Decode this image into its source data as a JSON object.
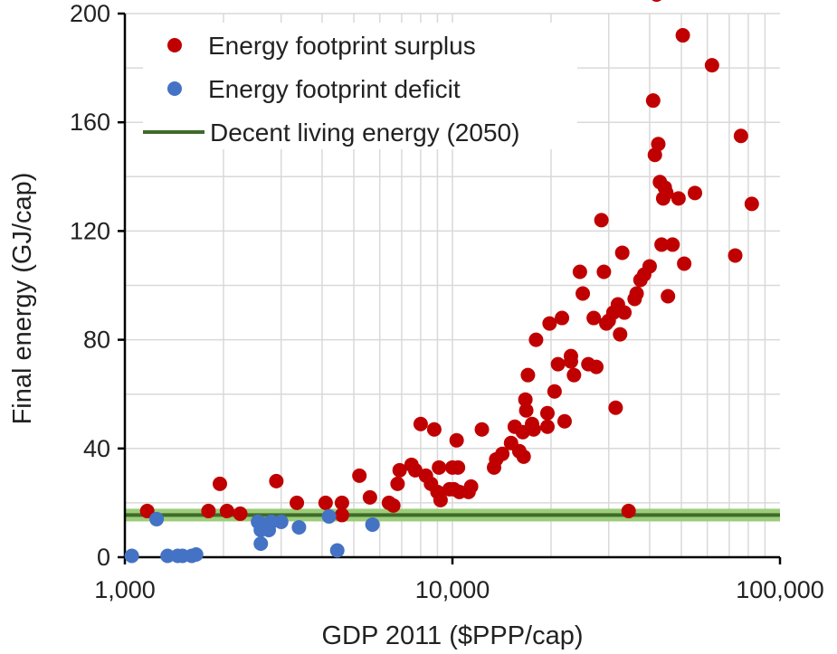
{
  "chart_data": {
    "type": "scatter",
    "title": "",
    "xlabel": "GDP 2011 ($PPP/cap)",
    "ylabel": "Final energy (GJ/cap)",
    "x_scale": "log",
    "xlim": [
      1000,
      100000
    ],
    "ylim": [
      0,
      200
    ],
    "x_ticks": [
      1000,
      10000,
      100000
    ],
    "x_tick_labels": [
      "1,000",
      "10,000",
      "100,000"
    ],
    "y_ticks": [
      0,
      40,
      80,
      120,
      160,
      200
    ],
    "y_tick_labels": [
      "0",
      "40",
      "80",
      "120",
      "160",
      "200"
    ],
    "grid": true,
    "legend_position": "top-left",
    "reference_line": {
      "name": "Decent living energy (2050)",
      "y": 15.5,
      "color": "#3f6b2a",
      "band_color": "#9bcd7a"
    },
    "series": [
      {
        "name": "Energy footprint surplus",
        "color": "#c00000",
        "points": [
          [
            1170,
            17
          ],
          [
            1800,
            17
          ],
          [
            1950,
            27
          ],
          [
            2050,
            17
          ],
          [
            2250,
            16
          ],
          [
            2900,
            28
          ],
          [
            3350,
            20
          ],
          [
            4100,
            20
          ],
          [
            4600,
            20
          ],
          [
            4600,
            15.5
          ],
          [
            5200,
            30
          ],
          [
            5600,
            22
          ],
          [
            6400,
            20
          ],
          [
            6600,
            19
          ],
          [
            6800,
            27
          ],
          [
            6900,
            32
          ],
          [
            7500,
            34
          ],
          [
            7700,
            32
          ],
          [
            8000,
            49
          ],
          [
            8300,
            30
          ],
          [
            8600,
            27
          ],
          [
            8800,
            47
          ],
          [
            9000,
            24
          ],
          [
            9100,
            33
          ],
          [
            9200,
            21
          ],
          [
            9800,
            25
          ],
          [
            10000,
            33
          ],
          [
            10100,
            25
          ],
          [
            10300,
            43
          ],
          [
            10400,
            33
          ],
          [
            10500,
            24
          ],
          [
            11200,
            24
          ],
          [
            11400,
            26
          ],
          [
            12300,
            47
          ],
          [
            13400,
            33
          ],
          [
            13600,
            36
          ],
          [
            14200,
            38
          ],
          [
            15100,
            42
          ],
          [
            15500,
            48
          ],
          [
            16000,
            39
          ],
          [
            16400,
            46
          ],
          [
            16500,
            37
          ],
          [
            16700,
            58
          ],
          [
            16800,
            54
          ],
          [
            17000,
            67
          ],
          [
            17500,
            49
          ],
          [
            17700,
            47
          ],
          [
            18000,
            80
          ],
          [
            19500,
            48
          ],
          [
            19500,
            53
          ],
          [
            19800,
            86
          ],
          [
            20500,
            61
          ],
          [
            21000,
            71
          ],
          [
            21600,
            88
          ],
          [
            22000,
            50
          ],
          [
            23000,
            72
          ],
          [
            23000,
            74
          ],
          [
            23500,
            67
          ],
          [
            24500,
            105
          ],
          [
            25000,
            97
          ],
          [
            26000,
            71
          ],
          [
            27000,
            88
          ],
          [
            27500,
            70
          ],
          [
            28500,
            124
          ],
          [
            29000,
            105
          ],
          [
            29500,
            86
          ],
          [
            30000,
            87
          ],
          [
            31000,
            90
          ],
          [
            31500,
            55
          ],
          [
            32000,
            93
          ],
          [
            32500,
            82
          ],
          [
            33000,
            112
          ],
          [
            33500,
            90
          ],
          [
            34500,
            17
          ],
          [
            36000,
            95
          ],
          [
            36500,
            97
          ],
          [
            37500,
            102
          ],
          [
            38500,
            104
          ],
          [
            40000,
            107
          ],
          [
            41000,
            168
          ],
          [
            41500,
            148
          ],
          [
            42000,
            207
          ],
          [
            42500,
            152
          ],
          [
            43000,
            138
          ],
          [
            43500,
            115
          ],
          [
            44000,
            132
          ],
          [
            44500,
            136
          ],
          [
            45000,
            134
          ],
          [
            45500,
            96
          ],
          [
            47000,
            115
          ],
          [
            49000,
            132
          ],
          [
            50500,
            192
          ],
          [
            51000,
            108
          ],
          [
            55000,
            134
          ],
          [
            62000,
            181
          ],
          [
            73000,
            111
          ],
          [
            76000,
            155
          ],
          [
            82000,
            130
          ]
        ]
      },
      {
        "name": "Energy footprint deficit",
        "color": "#4472c4",
        "points": [
          [
            1050,
            0.5
          ],
          [
            1250,
            14
          ],
          [
            1350,
            0.5
          ],
          [
            1450,
            0.5
          ],
          [
            1500,
            0.5
          ],
          [
            1600,
            0.5
          ],
          [
            1650,
            1
          ],
          [
            2550,
            13
          ],
          [
            2600,
            10
          ],
          [
            2600,
            5
          ],
          [
            2650,
            12
          ],
          [
            2700,
            12
          ],
          [
            2750,
            10
          ],
          [
            2800,
            13
          ],
          [
            3000,
            13
          ],
          [
            3400,
            11
          ],
          [
            4200,
            15
          ],
          [
            4450,
            2.5
          ],
          [
            5700,
            12
          ]
        ]
      }
    ]
  }
}
